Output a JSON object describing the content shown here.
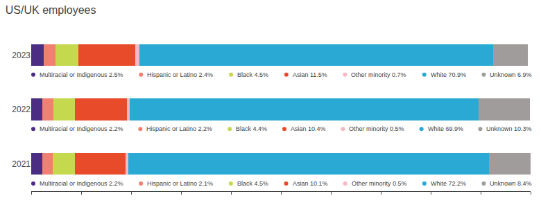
{
  "chart_data": {
    "type": "bar",
    "title": "US/UK employees",
    "orientation": "horizontal",
    "stacked": true,
    "categories": [
      "2023",
      "2022",
      "2021"
    ],
    "series": [
      {
        "name": "Multiracial or Indigenous",
        "color": "#4b2d83",
        "values": [
          2.5,
          2.2,
          2.2
        ],
        "value_labels": [
          "Multiracial or Indigenous 2.5%",
          "Multiracial or Indigenous 2.2%",
          "Multiracial or Indigenous 2.2%"
        ]
      },
      {
        "name": "Hispanic or Latino",
        "color": "#f08070",
        "values": [
          2.4,
          2.2,
          2.1
        ],
        "value_labels": [
          "Hispanic or Latino 2.4%",
          "Hispanic or Latino 2.2%",
          "Hispanic or Latino 2.1%"
        ]
      },
      {
        "name": "Black",
        "color": "#c5d94e",
        "values": [
          4.5,
          4.4,
          4.5
        ],
        "value_labels": [
          "Black 4.5%",
          "Black 4.4%",
          "Black 4.5%"
        ]
      },
      {
        "name": "Asian",
        "color": "#e84b2a",
        "values": [
          11.5,
          10.4,
          10.1
        ],
        "value_labels": [
          "Asian 11.5%",
          "Asian 10.4%",
          "Asian 10.1%"
        ]
      },
      {
        "name": "Other minority",
        "color": "#f5b8c4",
        "values": [
          0.7,
          0.5,
          0.5
        ],
        "value_labels": [
          "Other minority 0.7%",
          "Other minority 0.5%",
          "Other minority 0.5%"
        ]
      },
      {
        "name": "White",
        "color": "#29a9d4",
        "values": [
          70.9,
          69.9,
          72.2
        ],
        "value_labels": [
          "White 70.9%",
          "White 69.9%",
          "White 72.2%"
        ]
      },
      {
        "name": "Unknown",
        "color": "#a09c9c",
        "values": [
          6.9,
          10.3,
          8.4
        ],
        "value_labels": [
          "Unknown 6.9%",
          "Unknown 10.3%",
          "Unknown 8.4%"
        ]
      }
    ],
    "xlim": [
      0,
      100
    ],
    "xticks": [
      0,
      10,
      20,
      30,
      40,
      50,
      60,
      70,
      80,
      90,
      100
    ],
    "tick_labels": "y",
    "grid": false,
    "data_labels": true
  }
}
